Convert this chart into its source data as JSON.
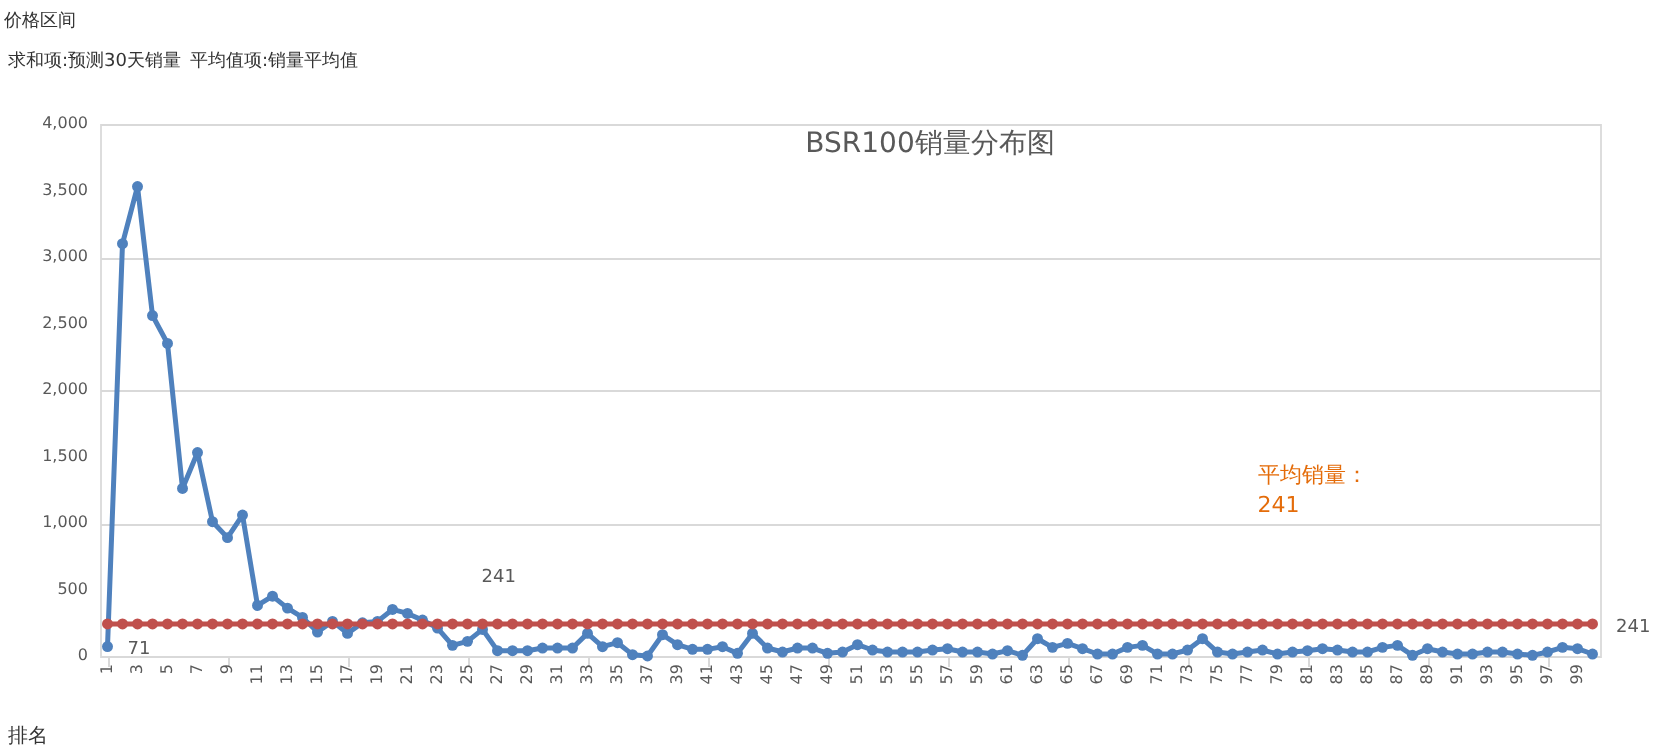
{
  "chart_data": {
    "type": "line",
    "title": "BSR100销量分布图",
    "xlabel": "排名",
    "categories": [
      "1",
      null,
      "3",
      null,
      "5",
      null,
      "7",
      null,
      "9",
      null,
      "11",
      null,
      "13",
      null,
      "15",
      null,
      "17",
      null,
      "19",
      null,
      "21",
      null,
      "23",
      null,
      "25",
      null,
      "27",
      null,
      "29",
      null,
      "31",
      null,
      "33",
      null,
      "35",
      null,
      "37",
      null,
      "39",
      null,
      "41",
      null,
      "43",
      null,
      "45",
      null,
      "47",
      null,
      "49",
      null,
      "51",
      null,
      "53",
      null,
      "55",
      null,
      "57",
      null,
      "59",
      null,
      "61",
      null,
      "63",
      null,
      "65",
      null,
      "67",
      null,
      "69",
      null,
      "71",
      null,
      "73",
      null,
      "75",
      null,
      "77",
      null,
      "79",
      null,
      "81",
      null,
      "83",
      null,
      "85",
      null,
      "87",
      null,
      "89",
      null,
      "91",
      null,
      "93",
      null,
      "95",
      null,
      "97",
      null,
      "99",
      null
    ],
    "series": [
      {
        "color": "#4f81bd",
        "values": [
          71,
          3100,
          3530,
          2560,
          2350,
          1260,
          1530,
          1010,
          890,
          1060,
          380,
          450,
          360,
          290,
          180,
          260,
          170,
          250,
          260,
          350,
          320,
          270,
          210,
          80,
          110,
          200,
          40,
          40,
          40,
          60,
          60,
          60,
          170,
          70,
          100,
          10,
          0,
          160,
          85,
          50,
          50,
          70,
          20,
          170,
          60,
          30,
          60,
          60,
          20,
          30,
          85,
          45,
          30,
          30,
          30,
          45,
          55,
          30,
          30,
          15,
          40,
          5,
          130,
          65,
          95,
          55,
          15,
          15,
          65,
          80,
          15,
          15,
          45,
          130,
          30,
          15,
          30,
          45,
          15,
          30,
          40,
          55,
          45,
          30,
          30,
          65,
          80,
          5,
          55,
          30,
          15,
          15,
          30,
          30,
          15,
          5,
          30,
          65,
          55,
          15
        ]
      },
      {
        "color": "#c0504d",
        "values": [
          241,
          241,
          241,
          241,
          241,
          241,
          241,
          241,
          241,
          241,
          241,
          241,
          241,
          241,
          241,
          241,
          241,
          241,
          241,
          241,
          241,
          241,
          241,
          241,
          241,
          241,
          241,
          241,
          241,
          241,
          241,
          241,
          241,
          241,
          241,
          241,
          241,
          241,
          241,
          241,
          241,
          241,
          241,
          241,
          241,
          241,
          241,
          241,
          241,
          241,
          241,
          241,
          241,
          241,
          241,
          241,
          241,
          241,
          241,
          241,
          241,
          241,
          241,
          241,
          241,
          241,
          241,
          241,
          241,
          241,
          241,
          241,
          241,
          241,
          241,
          241,
          241,
          241,
          241,
          241,
          241,
          241,
          241,
          241,
          241,
          241,
          241,
          241,
          241,
          241,
          241,
          241,
          241,
          241,
          241,
          241,
          241,
          241,
          241,
          241
        ]
      }
    ],
    "ylim": [
      0,
      4000
    ],
    "yticks": [
      0,
      {
        "value": 500,
        "label": "500"
      },
      {
        "value": 1000,
        "label": "1,000"
      },
      {
        "value": 1500,
        "label": "1,500"
      },
      {
        "value": 2000,
        "label": "2,000"
      },
      {
        "value": 2500,
        "label": "2,500"
      },
      {
        "value": 3000,
        "label": "3,000"
      },
      {
        "value": 3500,
        "label": "3,500"
      },
      {
        "value": 4000,
        "label": "4,000"
      }
    ],
    "grid": "y",
    "marker": "circle",
    "line_style": "solid",
    "annotations": [
      "价格区间",
      "求和项:预测30天销量",
      "平均值项:销量平均值",
      "71",
      "241",
      "241",
      "平均销量：\n241"
    ]
  }
}
